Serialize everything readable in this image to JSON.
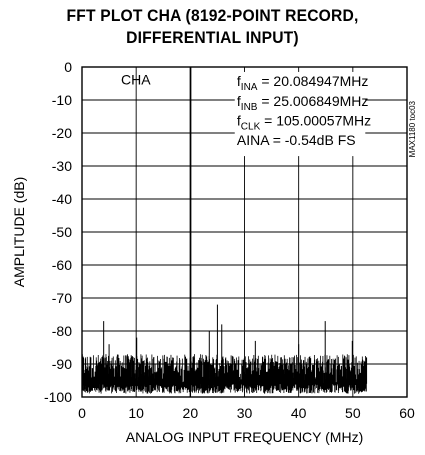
{
  "title_line1": "FFT PLOT CHA (8192-POINT RECORD,",
  "title_line2": "DIFFERENTIAL INPUT)",
  "watermark": "MAX1180 toc03",
  "chart_data": {
    "type": "line",
    "title": "FFT PLOT CHA (8192-POINT RECORD, DIFFERENTIAL INPUT)",
    "xlabel": "ANALOG INPUT FREQUENCY (MHz)",
    "ylabel": "AMPLITUDE (dB)",
    "xlim": [
      0,
      60
    ],
    "ylim": [
      -100,
      0
    ],
    "x_ticks": [
      0,
      10,
      20,
      30,
      40,
      50,
      60
    ],
    "y_ticks": [
      0,
      -10,
      -20,
      -30,
      -40,
      -50,
      -60,
      -70,
      -80,
      -90,
      -100
    ],
    "grid": true,
    "channel_label": "CHA",
    "annotations": [
      {
        "prefix": "f",
        "sub": "INA",
        "suffix": " = 20.084947MHz"
      },
      {
        "prefix": "f",
        "sub": "INB",
        "suffix": " = 25.006849MHz"
      },
      {
        "prefix": "f",
        "sub": "CLK",
        "suffix": " = 105.00057MHz"
      },
      {
        "prefix": "AINA = -0.54dB FS",
        "sub": "",
        "suffix": ""
      }
    ],
    "noise_floor": {
      "x_range": [
        0,
        52.5
      ],
      "baseline_db": -96,
      "upper_db": -87
    },
    "spurs": [
      {
        "x": 4.0,
        "y": -77
      },
      {
        "x": 5.0,
        "y": -84
      },
      {
        "x": 10.1,
        "y": -82
      },
      {
        "x": 20.08,
        "y": 0
      },
      {
        "x": 23.5,
        "y": -80
      },
      {
        "x": 25.0,
        "y": -72
      },
      {
        "x": 25.8,
        "y": -78
      },
      {
        "x": 32.0,
        "y": -83
      },
      {
        "x": 40.0,
        "y": -84
      },
      {
        "x": 44.9,
        "y": -77
      },
      {
        "x": 49.9,
        "y": -83
      }
    ]
  }
}
